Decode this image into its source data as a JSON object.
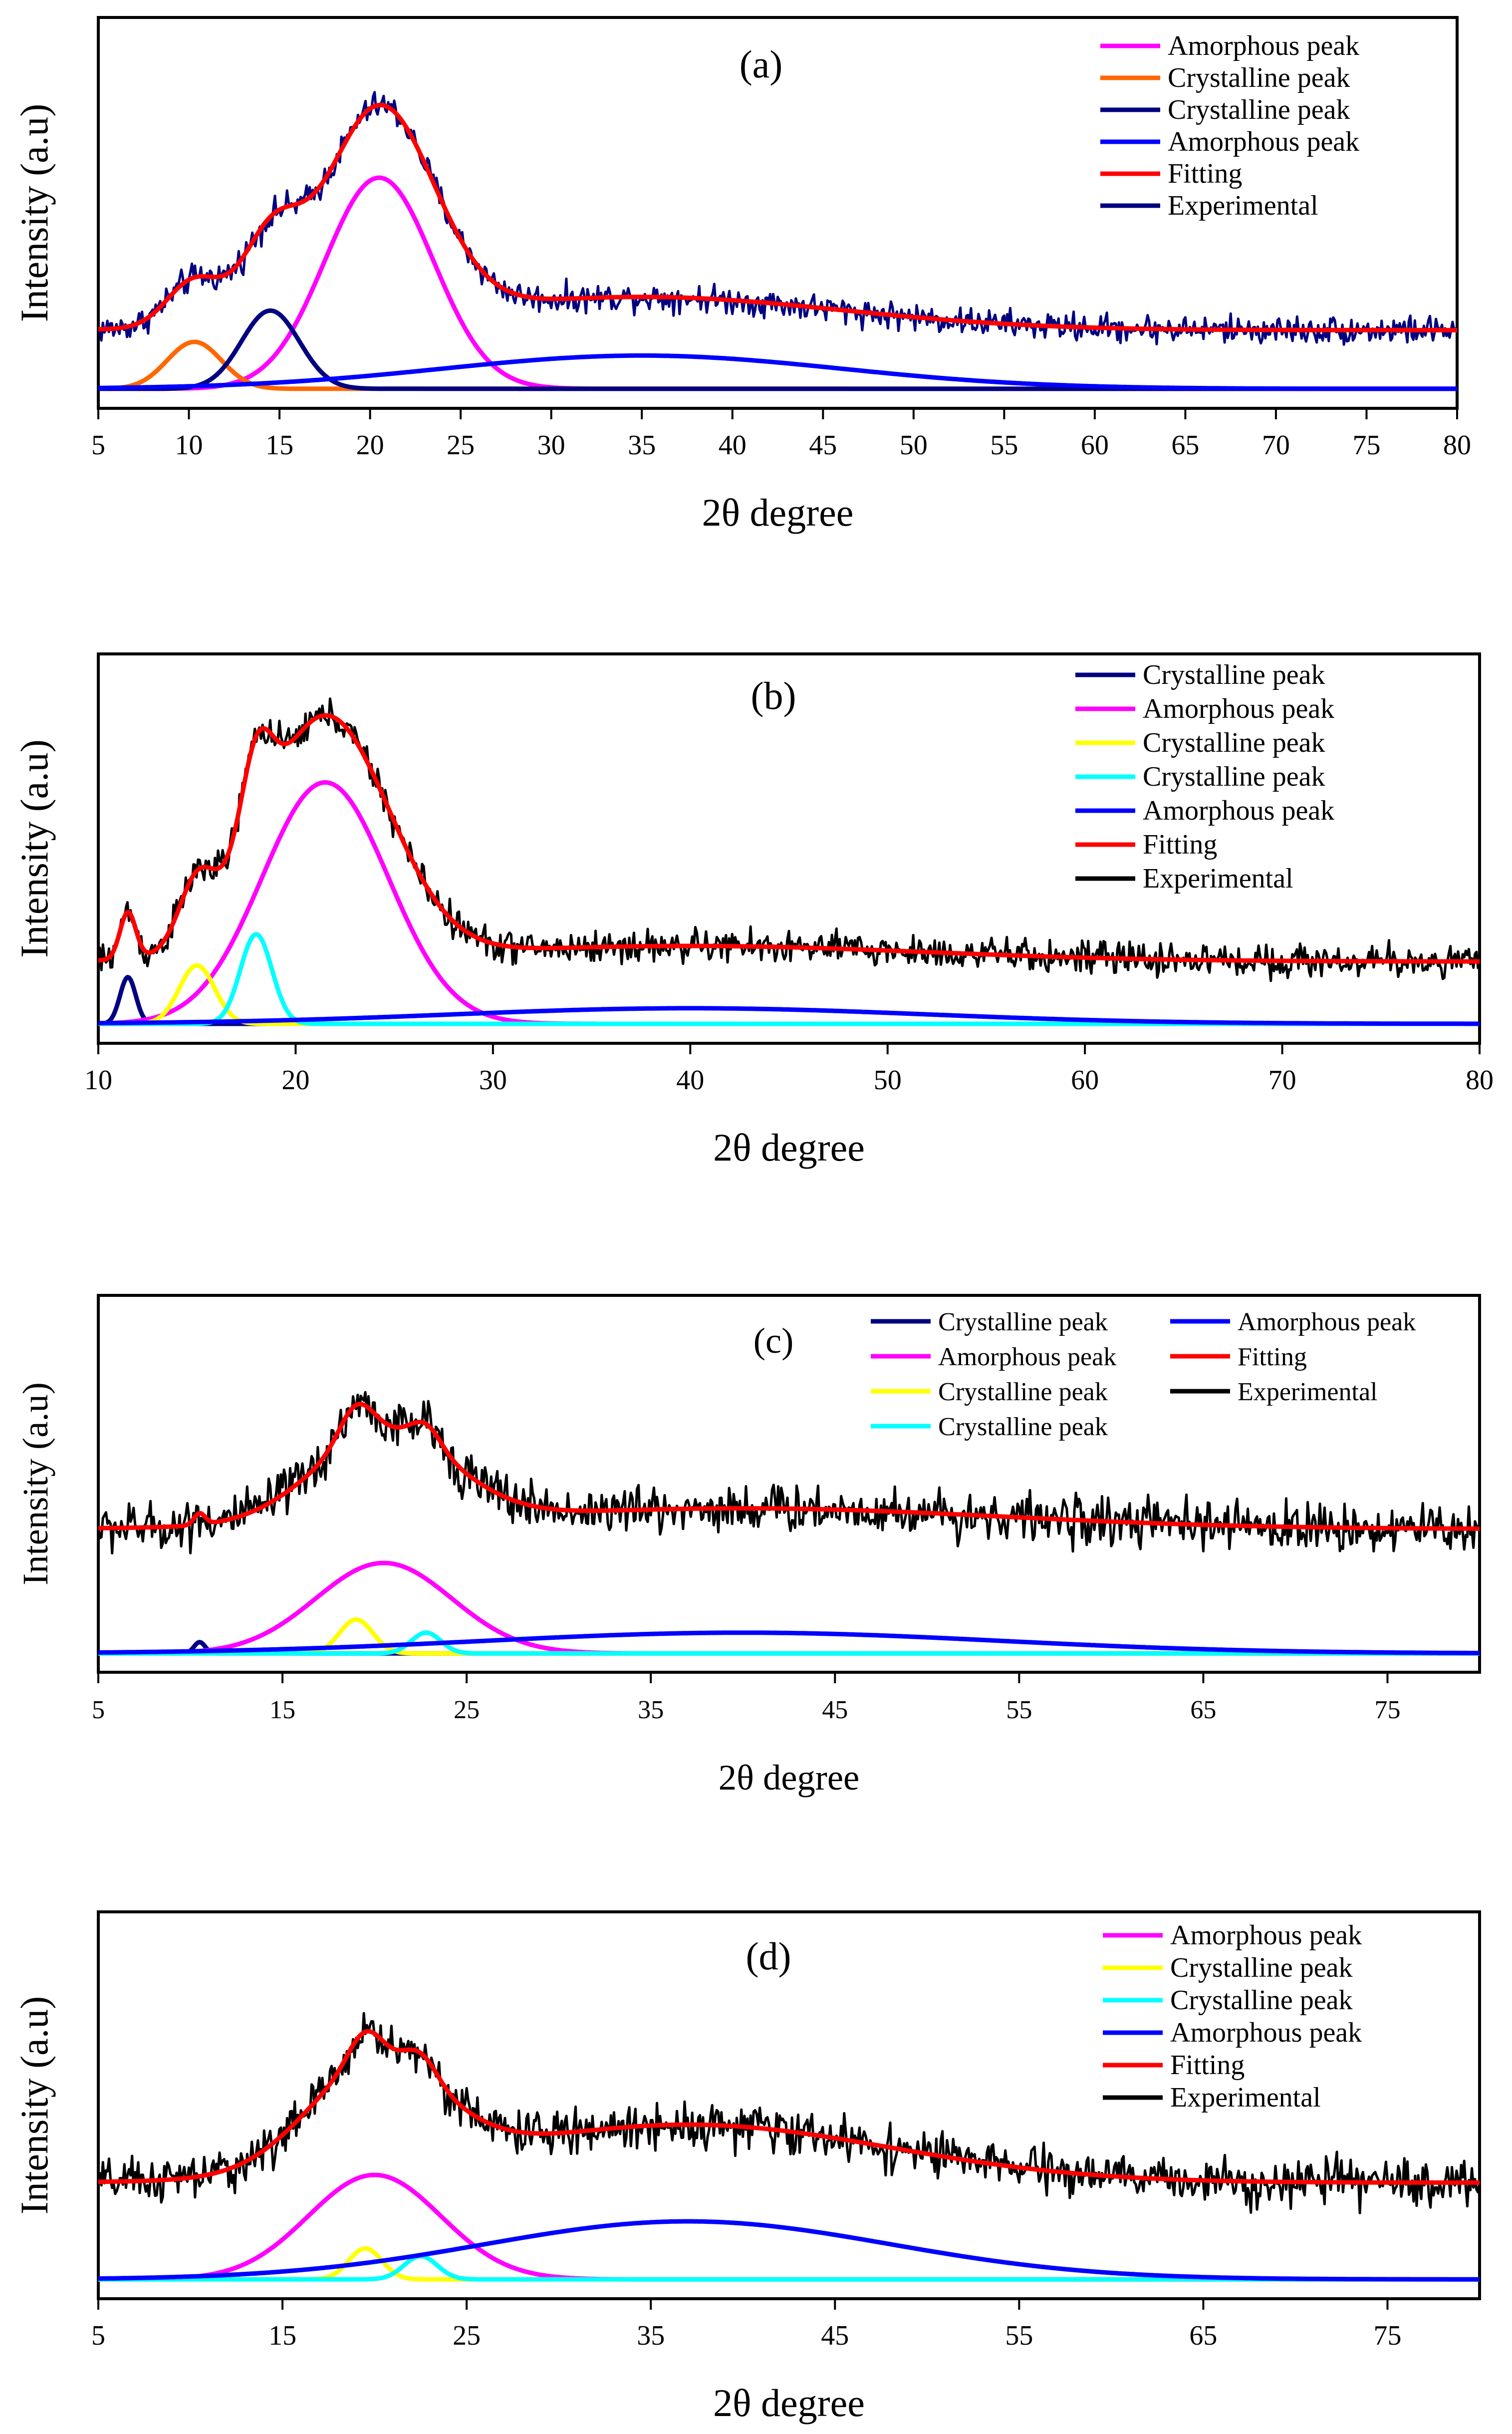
{
  "chart_data": [
    {
      "type": "line",
      "panel_label": "(a)",
      "xlabel": "2θ degree",
      "ylabel": "Intensity (a.u)",
      "xlim": [
        5,
        80
      ],
      "ylim": [
        0,
        1
      ],
      "xticks": [
        5,
        10,
        15,
        20,
        25,
        30,
        35,
        40,
        45,
        50,
        55,
        60,
        65,
        70,
        75,
        80
      ],
      "baseline": 0.2,
      "noise_amplitude": 0.025,
      "legend_placement": "top-right",
      "legend_columns": 1,
      "legend": [
        {
          "label": "Amorphous peak",
          "color": "#FF00FF"
        },
        {
          "label": "Crystalline peak",
          "color": "#FF6600"
        },
        {
          "label": "Crystalline peak",
          "color": "#000080"
        },
        {
          "label": "Amorphous peak",
          "color": "#0000FF"
        },
        {
          "label": "Fitting",
          "color": "#FF0000"
        },
        {
          "label": "Experimental",
          "color": "#000080"
        }
      ],
      "series": [
        {
          "name": "Amorphous peak",
          "color": "#FF00FF",
          "role": "peak",
          "center": 20.5,
          "sigma": 3.0,
          "height": 0.54
        },
        {
          "name": "Crystalline peak",
          "color": "#FF6600",
          "role": "peak",
          "center": 10.3,
          "sigma": 1.5,
          "height": 0.12
        },
        {
          "name": "Crystalline peak",
          "color": "#000080",
          "role": "peak",
          "center": 14.5,
          "sigma": 1.6,
          "height": 0.2
        },
        {
          "name": "Amorphous peak",
          "color": "#0000FF",
          "role": "peak",
          "center": 35.0,
          "sigma": 11.0,
          "height": 0.085
        },
        {
          "name": "Fitting",
          "color": "#FF0000",
          "role": "fit"
        },
        {
          "name": "Experimental",
          "color": "#000080",
          "role": "experimental"
        }
      ]
    },
    {
      "type": "line",
      "panel_label": "(b)",
      "xlabel": "2θ degree",
      "ylabel": "Intensity (a.u)",
      "xlim": [
        10,
        80
      ],
      "ylim": [
        0,
        1
      ],
      "xticks": [
        10,
        20,
        30,
        40,
        50,
        60,
        70,
        80
      ],
      "baseline": 0.21,
      "noise_amplitude": 0.03,
      "legend_placement": "top-right",
      "legend_columns": 1,
      "legend": [
        {
          "label": "Crystalline peak",
          "color": "#000080"
        },
        {
          "label": "Amorphous peak",
          "color": "#FF00FF"
        },
        {
          "label": "Crystalline peak",
          "color": "#FFFF00"
        },
        {
          "label": "Crystalline peak",
          "color": "#00FFFF"
        },
        {
          "label": "Amorphous peak",
          "color": "#0000FF"
        },
        {
          "label": "Fitting",
          "color": "#FF0000"
        },
        {
          "label": "Experimental",
          "color": "#000000"
        }
      ],
      "series": [
        {
          "name": "Crystalline peak",
          "color": "#000080",
          "role": "peak",
          "center": 11.5,
          "sigma": 0.4,
          "height": 0.12
        },
        {
          "name": "Amorphous peak",
          "color": "#FF00FF",
          "role": "peak",
          "center": 21.5,
          "sigma": 3.2,
          "height": 0.62
        },
        {
          "name": "Crystalline peak",
          "color": "#FFFF00",
          "role": "peak",
          "center": 15.0,
          "sigma": 0.9,
          "height": 0.15
        },
        {
          "name": "Crystalline peak",
          "color": "#00FFFF",
          "role": "peak",
          "center": 18.0,
          "sigma": 0.8,
          "height": 0.23
        },
        {
          "name": "Amorphous peak",
          "color": "#0000FF",
          "role": "peak",
          "center": 40.0,
          "sigma": 12.0,
          "height": 0.04
        },
        {
          "name": "Fitting",
          "color": "#FF0000",
          "role": "fit"
        },
        {
          "name": "Experimental",
          "color": "#000000",
          "role": "experimental"
        }
      ]
    },
    {
      "type": "line",
      "panel_label": "(c)",
      "xlabel": "2θ degree",
      "ylabel": "Intensity (a.u)",
      "xlim": [
        5,
        80
      ],
      "ylim": [
        0,
        1
      ],
      "xticks": [
        5,
        15,
        25,
        35,
        45,
        55,
        65,
        75
      ],
      "baseline": 0.38,
      "noise_amplitude": 0.045,
      "legend_placement": "top-right",
      "legend_columns": 2,
      "legend": [
        {
          "label": "Crystalline peak",
          "color": "#000080"
        },
        {
          "label": "Amorphous peak",
          "color": "#FF00FF"
        },
        {
          "label": "Crystalline peak",
          "color": "#FFFF00"
        },
        {
          "label": "Crystalline peak",
          "color": "#00FFFF"
        },
        {
          "label": "Amorphous peak",
          "color": "#0000FF"
        },
        {
          "label": "Fitting",
          "color": "#FF0000"
        },
        {
          "label": "Experimental",
          "color": "#000000"
        }
      ],
      "series": [
        {
          "name": "Crystalline peak",
          "color": "#000080",
          "role": "peak",
          "center": 10.5,
          "sigma": 0.3,
          "height": 0.03
        },
        {
          "name": "Amorphous peak",
          "color": "#FF00FF",
          "role": "peak",
          "center": 20.5,
          "sigma": 3.7,
          "height": 0.24
        },
        {
          "name": "Crystalline peak",
          "color": "#FFFF00",
          "role": "peak",
          "center": 19.0,
          "sigma": 0.9,
          "height": 0.09
        },
        {
          "name": "Crystalline peak",
          "color": "#00FFFF",
          "role": "peak",
          "center": 22.8,
          "sigma": 0.8,
          "height": 0.055
        },
        {
          "name": "Amorphous peak",
          "color": "#0000FF",
          "role": "peak",
          "center": 40.0,
          "sigma": 14.0,
          "height": 0.055
        },
        {
          "name": "Fitting",
          "color": "#FF0000",
          "role": "fit"
        },
        {
          "name": "Experimental",
          "color": "#000000",
          "role": "experimental"
        }
      ]
    },
    {
      "type": "line",
      "panel_label": "(d)",
      "xlabel": "2θ degree",
      "ylabel": "Intensity (a.u)",
      "xlim": [
        5,
        80
      ],
      "ylim": [
        0,
        1
      ],
      "xticks": [
        5,
        15,
        25,
        35,
        45,
        55,
        65,
        75
      ],
      "baseline": 0.3,
      "noise_amplitude": 0.04,
      "legend_placement": "top-right",
      "legend_columns": 1,
      "legend": [
        {
          "label": "Amorphous peak",
          "color": "#FF00FF"
        },
        {
          "label": "Crystalline peak",
          "color": "#FFFF00"
        },
        {
          "label": "Crystalline peak",
          "color": "#00FFFF"
        },
        {
          "label": "Amorphous peak",
          "color": "#0000FF"
        },
        {
          "label": "Fitting",
          "color": "#FF0000"
        },
        {
          "label": "Experimental",
          "color": "#000000"
        }
      ],
      "series": [
        {
          "name": "Amorphous peak",
          "color": "#FF00FF",
          "role": "peak",
          "center": 20.0,
          "sigma": 3.6,
          "height": 0.27
        },
        {
          "name": "Crystalline peak",
          "color": "#FFFF00",
          "role": "peak",
          "center": 19.5,
          "sigma": 0.9,
          "height": 0.08
        },
        {
          "name": "Crystalline peak",
          "color": "#00FFFF",
          "role": "peak",
          "center": 22.5,
          "sigma": 0.9,
          "height": 0.06
        },
        {
          "name": "Amorphous peak",
          "color": "#0000FF",
          "role": "peak",
          "center": 37.0,
          "sigma": 11.0,
          "height": 0.15
        },
        {
          "name": "Fitting",
          "color": "#FF0000",
          "role": "fit"
        },
        {
          "name": "Experimental",
          "color": "#000000",
          "role": "experimental"
        }
      ]
    }
  ]
}
